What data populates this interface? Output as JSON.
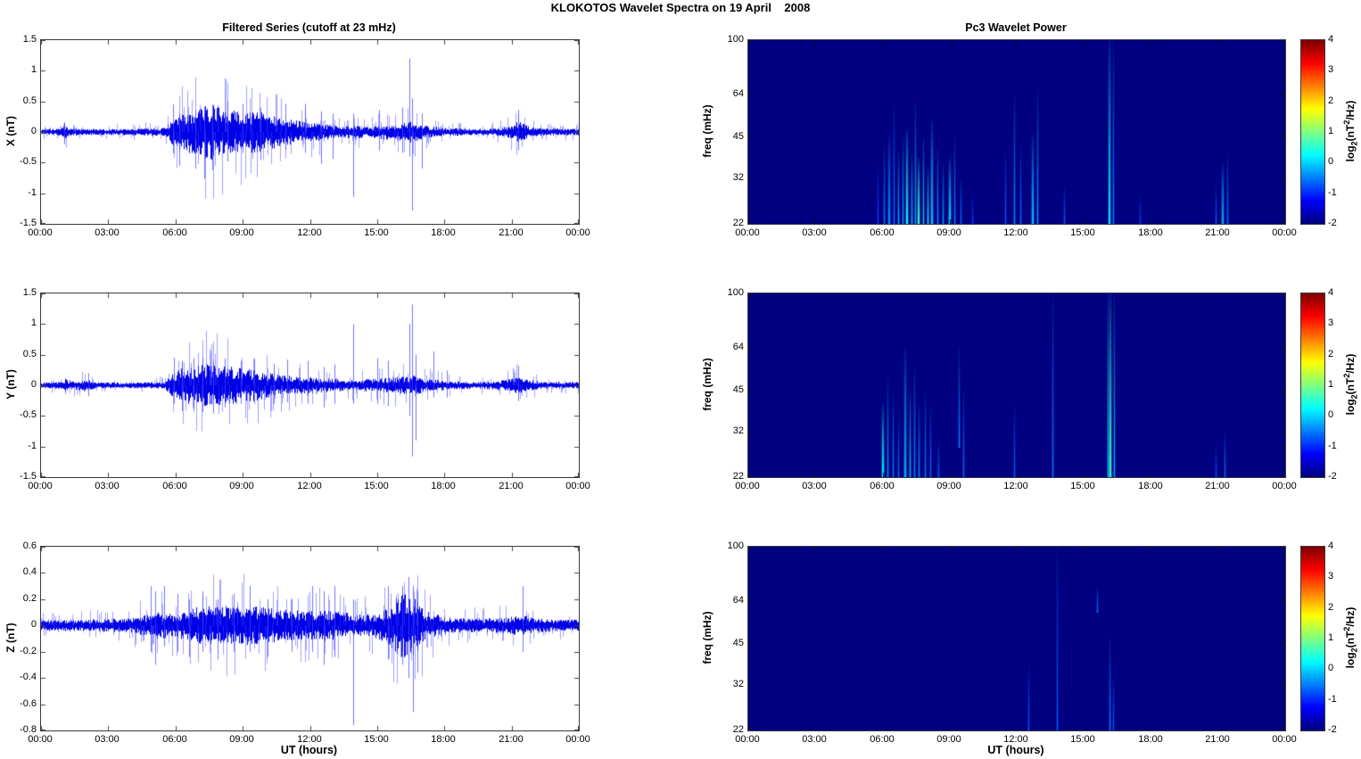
{
  "figure_title": "KLOKOTOS Wavelet Spectra on 19 April    2008",
  "colors": {
    "series_line": "#0000e6",
    "spike_line": "#4646ff",
    "spectrogram_background": "#000080",
    "axis": "#3a3a3a",
    "text": "#000000"
  },
  "colorbar": {
    "range": [
      -2,
      4
    ],
    "ticks": [
      4,
      3,
      2,
      1,
      0,
      -1,
      -2
    ],
    "colormap": "jet",
    "label_pre": "log",
    "label_sub": "2",
    "label_mid": "(nT",
    "label_sup": "2",
    "label_post": "/Hz)"
  },
  "chart_data": [
    {
      "panel": "x-filtered-series",
      "type": "line",
      "title": "Filtered Series (cutoff at 23 mHz)",
      "ylabel": "X (nT)",
      "ylim": [
        -1.5,
        1.5
      ],
      "yticks": [
        1.5,
        1,
        0.5,
        0,
        -0.5,
        -1,
        -1.5
      ],
      "xlim_hours": [
        0,
        24
      ],
      "xtick_hours": [
        0,
        3,
        6,
        9,
        12,
        15,
        18,
        21,
        24
      ],
      "xtick_labels": [
        "00:00",
        "03:00",
        "06:00",
        "09:00",
        "12:00",
        "15:00",
        "18:00",
        "21:00",
        "00:00"
      ],
      "envelope": [
        [
          0,
          0.045
        ],
        [
          0.9,
          0.05
        ],
        [
          1.05,
          0.13
        ],
        [
          1.2,
          0.06
        ],
        [
          2,
          0.045
        ],
        [
          3,
          0.045
        ],
        [
          4,
          0.05
        ],
        [
          5.5,
          0.06
        ],
        [
          5.9,
          0.2
        ],
        [
          6.4,
          0.3
        ],
        [
          7,
          0.36
        ],
        [
          7.6,
          0.42
        ],
        [
          8.2,
          0.34
        ],
        [
          9,
          0.3
        ],
        [
          9.6,
          0.32
        ],
        [
          10.2,
          0.26
        ],
        [
          11,
          0.2
        ],
        [
          11.6,
          0.16
        ],
        [
          12.2,
          0.14
        ],
        [
          12.8,
          0.12
        ],
        [
          13.4,
          0.09
        ],
        [
          14,
          0.1
        ],
        [
          14.6,
          0.08
        ],
        [
          15.2,
          0.11
        ],
        [
          15.8,
          0.12
        ],
        [
          16.3,
          0.14
        ],
        [
          16.6,
          0.18
        ],
        [
          17,
          0.1
        ],
        [
          17.6,
          0.08
        ],
        [
          18.2,
          0.06
        ],
        [
          19,
          0.05
        ],
        [
          20,
          0.05
        ],
        [
          20.9,
          0.09
        ],
        [
          21.3,
          0.16
        ],
        [
          21.7,
          0.1
        ],
        [
          22.2,
          0.06
        ],
        [
          23,
          0.05
        ],
        [
          24,
          0.05
        ]
      ],
      "spikes": [
        [
          1.05,
          0.16,
          -0.2
        ],
        [
          5.9,
          0.45,
          -0.35
        ],
        [
          6.15,
          0.3,
          -0.55
        ],
        [
          6.9,
          0.35,
          -0.6
        ],
        [
          7.3,
          0.42,
          -0.76
        ],
        [
          7.65,
          0.45,
          -0.62
        ],
        [
          8.3,
          0.5,
          -0.48
        ],
        [
          9.0,
          0.46,
          -0.34
        ],
        [
          9.8,
          0.4,
          -0.46
        ],
        [
          10.9,
          0.46,
          -0.3
        ],
        [
          11.8,
          0.46,
          -0.34
        ],
        [
          12.5,
          0.34,
          -0.52
        ],
        [
          13.0,
          0.3,
          -0.44
        ],
        [
          13.95,
          0.3,
          -1.06
        ],
        [
          15.1,
          0.36,
          -0.3
        ],
        [
          16.1,
          0.4,
          -0.34
        ],
        [
          16.45,
          1.2,
          -0.4
        ],
        [
          16.55,
          0.55,
          -1.28
        ],
        [
          17.0,
          0.3,
          -0.6
        ],
        [
          21.3,
          0.36,
          -0.3
        ]
      ]
    },
    {
      "panel": "x-wavelet-power",
      "type": "heatmap",
      "title": "Pc3 Wavelet Power",
      "ylabel": "freq (mHz)",
      "yscale": "log",
      "ylim": [
        22,
        100
      ],
      "yticks": [
        100,
        64,
        45,
        32,
        22
      ],
      "xlim_hours": [
        0,
        24
      ],
      "xtick_hours": [
        0,
        3,
        6,
        9,
        12,
        15,
        18,
        21,
        24
      ],
      "xtick_labels": [
        "00:00",
        "03:00",
        "06:00",
        "09:00",
        "12:00",
        "15:00",
        "18:00",
        "21:00",
        "00:00"
      ],
      "base_value": -2,
      "events": [
        [
          5.8,
          22,
          36,
          -0.9,
          1
        ],
        [
          6.05,
          22,
          42,
          -0.5,
          1
        ],
        [
          6.3,
          22,
          46,
          -0.4,
          2
        ],
        [
          6.5,
          22,
          60,
          -0.6,
          1
        ],
        [
          6.7,
          22,
          40,
          -0.2,
          1
        ],
        [
          6.9,
          22,
          45,
          -0.3,
          1
        ],
        [
          7.1,
          22,
          48,
          0.3,
          2
        ],
        [
          7.3,
          22,
          40,
          -0.1,
          1
        ],
        [
          7.45,
          22,
          60,
          -0.2,
          1
        ],
        [
          7.6,
          22,
          38,
          0.6,
          2
        ],
        [
          7.8,
          22,
          45,
          0.0,
          1
        ],
        [
          8.0,
          22,
          35,
          0.3,
          1
        ],
        [
          8.2,
          22,
          52,
          -0.1,
          2
        ],
        [
          8.45,
          22,
          42,
          -0.4,
          1
        ],
        [
          8.7,
          22,
          36,
          -0.3,
          1
        ],
        [
          9.0,
          22,
          38,
          0.1,
          2
        ],
        [
          9.2,
          22,
          46,
          -0.5,
          1
        ],
        [
          9.5,
          22,
          32,
          -0.6,
          1
        ],
        [
          10.0,
          22,
          28,
          -0.9,
          1
        ],
        [
          11.5,
          22,
          40,
          -0.7,
          1
        ],
        [
          11.9,
          22,
          64,
          -0.4,
          1
        ],
        [
          12.15,
          22,
          42,
          -0.6,
          1
        ],
        [
          12.7,
          22,
          46,
          -0.1,
          2
        ],
        [
          12.9,
          22,
          66,
          -0.4,
          1
        ],
        [
          14.1,
          22,
          30,
          -0.7,
          1
        ],
        [
          16.15,
          22,
          100,
          0.1,
          2
        ],
        [
          16.3,
          22,
          100,
          -0.5,
          1
        ],
        [
          17.5,
          22,
          28,
          -0.9,
          1
        ],
        [
          20.9,
          22,
          30,
          -0.7,
          1
        ],
        [
          21.2,
          22,
          36,
          -0.2,
          2
        ],
        [
          21.4,
          22,
          40,
          -0.6,
          1
        ]
      ]
    },
    {
      "panel": "y-filtered-series",
      "type": "line",
      "ylabel": "Y (nT)",
      "ylim": [
        -1.5,
        1.5
      ],
      "yticks": [
        1.5,
        1,
        0.5,
        0,
        -0.5,
        -1,
        -1.5
      ],
      "xlim_hours": [
        0,
        24
      ],
      "xtick_hours": [
        0,
        3,
        6,
        9,
        12,
        15,
        18,
        21,
        24
      ],
      "xtick_labels": [
        "00:00",
        "03:00",
        "06:00",
        "09:00",
        "12:00",
        "15:00",
        "18:00",
        "21:00",
        "00:00"
      ],
      "envelope": [
        [
          0,
          0.04
        ],
        [
          0.9,
          0.05
        ],
        [
          1.1,
          0.1
        ],
        [
          1.4,
          0.06
        ],
        [
          2.1,
          0.09
        ],
        [
          2.4,
          0.05
        ],
        [
          3.5,
          0.04
        ],
        [
          5.5,
          0.05
        ],
        [
          5.9,
          0.18
        ],
        [
          6.3,
          0.26
        ],
        [
          7,
          0.3
        ],
        [
          7.7,
          0.32
        ],
        [
          8.4,
          0.28
        ],
        [
          9.2,
          0.26
        ],
        [
          9.8,
          0.22
        ],
        [
          10.5,
          0.16
        ],
        [
          11.2,
          0.14
        ],
        [
          12,
          0.12
        ],
        [
          12.8,
          0.1
        ],
        [
          13.6,
          0.08
        ],
        [
          14.2,
          0.09
        ],
        [
          15,
          0.1
        ],
        [
          15.6,
          0.12
        ],
        [
          16.2,
          0.13
        ],
        [
          16.6,
          0.16
        ],
        [
          17.1,
          0.1
        ],
        [
          17.8,
          0.08
        ],
        [
          18.4,
          0.06
        ],
        [
          19.5,
          0.05
        ],
        [
          20.8,
          0.08
        ],
        [
          21.3,
          0.13
        ],
        [
          21.8,
          0.08
        ],
        [
          22.5,
          0.05
        ],
        [
          24,
          0.05
        ]
      ],
      "spikes": [
        [
          2.1,
          0.2,
          -0.18
        ],
        [
          5.95,
          0.45,
          -0.3
        ],
        [
          6.3,
          0.4,
          -0.42
        ],
        [
          6.8,
          0.44,
          -0.4
        ],
        [
          7.2,
          0.46,
          -0.44
        ],
        [
          7.7,
          0.4,
          -0.46
        ],
        [
          8.2,
          0.44,
          -0.36
        ],
        [
          8.9,
          0.4,
          -0.3
        ],
        [
          9.5,
          0.44,
          -0.3
        ],
        [
          10.4,
          0.35,
          -0.3
        ],
        [
          11.0,
          0.42,
          -0.28
        ],
        [
          11.9,
          0.4,
          -0.3
        ],
        [
          12.6,
          0.3,
          -0.36
        ],
        [
          13.1,
          0.34,
          -0.3
        ],
        [
          13.95,
          1.0,
          -0.3
        ],
        [
          15.0,
          0.44,
          -0.3
        ],
        [
          15.5,
          0.4,
          -0.34
        ],
        [
          16.45,
          1.0,
          -0.5
        ],
        [
          16.55,
          1.32,
          -1.16
        ],
        [
          16.7,
          0.5,
          -0.9
        ],
        [
          17.5,
          0.55,
          -0.2
        ],
        [
          18.1,
          0.24,
          -0.2
        ],
        [
          21.3,
          0.32,
          -0.26
        ]
      ]
    },
    {
      "panel": "y-wavelet-power",
      "type": "heatmap",
      "ylabel": "freq (mHz)",
      "yscale": "log",
      "ylim": [
        22,
        100
      ],
      "yticks": [
        100,
        64,
        45,
        32,
        22
      ],
      "xlim_hours": [
        0,
        24
      ],
      "xtick_hours": [
        0,
        3,
        6,
        9,
        12,
        15,
        18,
        21,
        24
      ],
      "xtick_labels": [
        "00:00",
        "03:00",
        "06:00",
        "09:00",
        "12:00",
        "15:00",
        "18:00",
        "21:00",
        "00:00"
      ],
      "base_value": -2,
      "events": [
        [
          6.0,
          22,
          40,
          0.3,
          2
        ],
        [
          6.2,
          22,
          50,
          -0.4,
          1
        ],
        [
          6.45,
          22,
          44,
          -0.5,
          1
        ],
        [
          6.7,
          22,
          36,
          -0.6,
          1
        ],
        [
          7.0,
          22,
          64,
          -0.2,
          2
        ],
        [
          7.2,
          22,
          46,
          -0.1,
          1
        ],
        [
          7.4,
          22,
          55,
          -0.4,
          1
        ],
        [
          7.6,
          22,
          40,
          -0.4,
          1
        ],
        [
          7.9,
          22,
          44,
          -0.5,
          1
        ],
        [
          8.15,
          22,
          40,
          -0.6,
          1
        ],
        [
          8.5,
          22,
          30,
          -0.7,
          1
        ],
        [
          9.4,
          28,
          64,
          -0.45,
          1
        ],
        [
          9.6,
          22,
          45,
          -0.6,
          1
        ],
        [
          11.9,
          22,
          40,
          -0.7,
          1
        ],
        [
          13.6,
          22,
          100,
          -0.5,
          1
        ],
        [
          16.05,
          22,
          100,
          0.0,
          1
        ],
        [
          16.2,
          22,
          100,
          0.6,
          2
        ],
        [
          16.35,
          22,
          100,
          -0.2,
          1
        ],
        [
          20.9,
          22,
          28,
          -0.75,
          1
        ],
        [
          21.3,
          22,
          32,
          -0.6,
          1
        ]
      ]
    },
    {
      "panel": "z-filtered-series",
      "type": "line",
      "ylabel": "Z (nT)",
      "xlabel": "UT (hours)",
      "ylim": [
        -0.8,
        0.6
      ],
      "yticks": [
        0.6,
        0.4,
        0.2,
        0,
        -0.2,
        -0.4,
        -0.6,
        -0.8
      ],
      "xlim_hours": [
        0,
        24
      ],
      "xtick_hours": [
        0,
        3,
        6,
        9,
        12,
        15,
        18,
        21,
        24
      ],
      "xtick_labels": [
        "00:00",
        "03:00",
        "06:00",
        "09:00",
        "12:00",
        "15:00",
        "18:00",
        "21:00",
        "00:00"
      ],
      "envelope": [
        [
          0,
          0.04
        ],
        [
          2,
          0.04
        ],
        [
          4,
          0.05
        ],
        [
          4.8,
          0.08
        ],
        [
          5.2,
          0.1
        ],
        [
          5.8,
          0.08
        ],
        [
          6.4,
          0.1
        ],
        [
          7,
          0.13
        ],
        [
          7.8,
          0.14
        ],
        [
          8.6,
          0.13
        ],
        [
          9.4,
          0.14
        ],
        [
          10.2,
          0.12
        ],
        [
          11,
          0.11
        ],
        [
          11.8,
          0.1
        ],
        [
          12.6,
          0.11
        ],
        [
          13.2,
          0.1
        ],
        [
          14,
          0.08
        ],
        [
          14.8,
          0.08
        ],
        [
          15.4,
          0.12
        ],
        [
          15.9,
          0.2
        ],
        [
          16.3,
          0.24
        ],
        [
          16.7,
          0.2
        ],
        [
          17.2,
          0.1
        ],
        [
          18,
          0.06
        ],
        [
          19,
          0.05
        ],
        [
          20,
          0.05
        ],
        [
          21,
          0.06
        ],
        [
          21.5,
          0.08
        ],
        [
          22,
          0.05
        ],
        [
          23,
          0.04
        ],
        [
          24,
          0.04
        ]
      ],
      "spikes": [
        [
          4.9,
          0.3,
          -0.2
        ],
        [
          5.1,
          0.26,
          -0.3
        ],
        [
          5.5,
          0.3,
          -0.16
        ],
        [
          6.1,
          0.24,
          -0.2
        ],
        [
          6.6,
          0.2,
          -0.24
        ],
        [
          7.2,
          0.26,
          -0.2
        ],
        [
          7.9,
          0.2,
          -0.26
        ],
        [
          8.6,
          0.24,
          -0.2
        ],
        [
          9.3,
          0.3,
          -0.2
        ],
        [
          10.1,
          0.2,
          -0.24
        ],
        [
          11.2,
          0.2,
          -0.2
        ],
        [
          12.1,
          0.3,
          -0.2
        ],
        [
          12.6,
          0.26,
          -0.3
        ],
        [
          13.1,
          0.3,
          -0.24
        ],
        [
          13.95,
          0.2,
          -0.76
        ],
        [
          15.5,
          0.3,
          -0.26
        ],
        [
          16.1,
          0.3,
          -0.3
        ],
        [
          16.4,
          0.37,
          -0.4
        ],
        [
          16.6,
          0.3,
          -0.66
        ],
        [
          16.8,
          0.26,
          -0.36
        ],
        [
          21.5,
          0.3,
          -0.2
        ]
      ]
    },
    {
      "panel": "z-wavelet-power",
      "type": "heatmap",
      "ylabel": "freq (mHz)",
      "xlabel": "UT (hours)",
      "yscale": "log",
      "ylim": [
        22,
        100
      ],
      "yticks": [
        100,
        64,
        45,
        32,
        22
      ],
      "xlim_hours": [
        0,
        24
      ],
      "xtick_hours": [
        0,
        3,
        6,
        9,
        12,
        15,
        18,
        21,
        24
      ],
      "xtick_labels": [
        "00:00",
        "03:00",
        "06:00",
        "09:00",
        "12:00",
        "15:00",
        "18:00",
        "21:00",
        "00:00"
      ],
      "base_value": -2,
      "events": [
        [
          12.5,
          22,
          38,
          -0.75,
          1
        ],
        [
          13.8,
          22,
          100,
          -0.7,
          1
        ],
        [
          15.6,
          58,
          72,
          -0.55,
          1
        ],
        [
          16.15,
          22,
          48,
          -0.5,
          1
        ],
        [
          16.3,
          22,
          34,
          -0.7,
          1
        ]
      ]
    }
  ]
}
